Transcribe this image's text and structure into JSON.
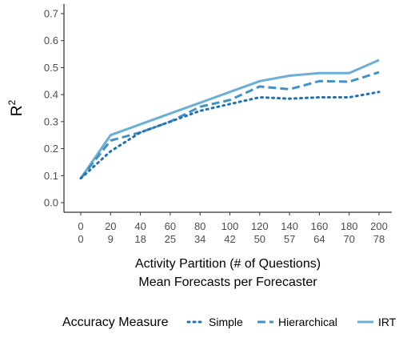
{
  "chart_data": {
    "type": "line",
    "x": [
      0,
      20,
      40,
      60,
      80,
      100,
      120,
      140,
      160,
      180,
      200
    ],
    "x_secondary_labels": [
      "0",
      "9",
      "18",
      "25",
      "34",
      "42",
      "50",
      "57",
      "64",
      "70",
      "78"
    ],
    "xlabel": "Activity Partition (# of Questions)",
    "xlabel2": "Mean Forecasts per Forecaster",
    "ylabel_base": "R",
    "ylabel_sup": "2",
    "ylim": [
      0,
      0.7
    ],
    "yticks": [
      "0.0",
      "0.1",
      "0.2",
      "0.3",
      "0.4",
      "0.5",
      "0.6",
      "0.7"
    ],
    "grid": false,
    "legend": {
      "title": "Accuracy Measure",
      "position": "bottom"
    },
    "series": [
      {
        "name": "Simple",
        "style": "dotted",
        "color": "#2171b5",
        "values": [
          0.09,
          0.19,
          0.26,
          0.3,
          0.34,
          0.365,
          0.39,
          0.385,
          0.39,
          0.39,
          0.41
        ]
      },
      {
        "name": "Hierarchical",
        "style": "dashed",
        "color": "#4292c6",
        "values": [
          0.09,
          0.23,
          0.26,
          0.3,
          0.355,
          0.38,
          0.43,
          0.42,
          0.45,
          0.448,
          0.483
        ]
      },
      {
        "name": "IRT",
        "style": "solid",
        "color": "#6baed6",
        "values": [
          0.09,
          0.25,
          0.29,
          0.33,
          0.37,
          0.41,
          0.45,
          0.47,
          0.48,
          0.48,
          0.528
        ]
      }
    ]
  }
}
